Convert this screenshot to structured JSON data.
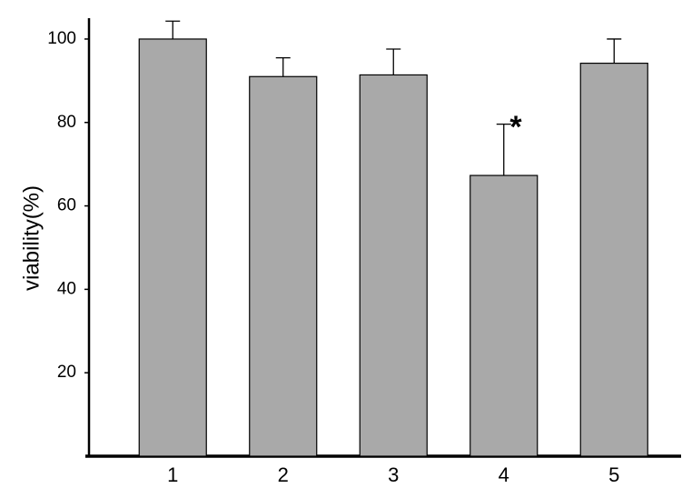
{
  "chart_data": {
    "type": "bar",
    "y_label": "viability(%)",
    "categories": [
      "1",
      "2",
      "3",
      "4",
      "5"
    ],
    "values": [
      100,
      91,
      91.4,
      67.3,
      94.2
    ],
    "errors": [
      4.3,
      4.5,
      6.2,
      12.3,
      5.8
    ],
    "color": "#a9a9a9",
    "ylim": [
      0,
      105
    ],
    "yticks": [
      20,
      40,
      60,
      80,
      100
    ],
    "annotations": [
      {
        "text": "*"
      }
    ]
  }
}
